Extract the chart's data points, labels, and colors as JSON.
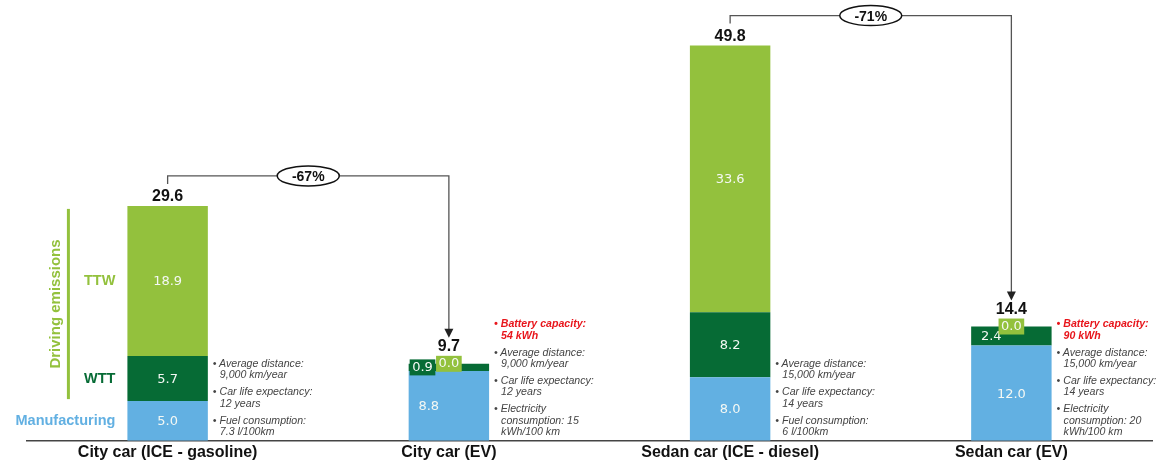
{
  "chart_data": {
    "type": "bar",
    "stacked": true,
    "categories": [
      "City car (ICE - gasoline)",
      "City car (EV)",
      "Sedan car (ICE - diesel)",
      "Sedan car (EV)"
    ],
    "series": [
      {
        "name": "Manufacturing",
        "color": "#62b0e2",
        "values": [
          5.0,
          8.8,
          8.0,
          12.0
        ],
        "value_labels": [
          "5.0",
          "8.8",
          "8.0",
          "12.0"
        ]
      },
      {
        "name": "WTT",
        "color": "#066b35",
        "values": [
          5.7,
          0.9,
          8.2,
          2.4
        ],
        "value_labels": [
          "5.7",
          "0.9",
          "8.2",
          "2.4"
        ]
      },
      {
        "name": "TTW",
        "color": "#93c13d",
        "values": [
          18.9,
          0.0,
          33.6,
          0.0
        ],
        "value_labels": [
          "18.9",
          "0.0",
          "33.6",
          "0.0"
        ]
      }
    ],
    "totals": [
      "29.6",
      "9.7",
      "49.8",
      "14.4"
    ],
    "annotations": [
      "Driving emissions",
      "-67%",
      "-71%",
      "• Average distance:\n9,000 km/year",
      "• Car life expectancy:\n12 years",
      "• Fuel consumption:\n7.3 l/100km",
      "• Battery capacity:\n54 kWh",
      "• Average distance:\n9,000 km/year",
      "• Car life expectancy:\n12 years",
      "• Electricity\nconsumption: 15\nkWh/100 km",
      "• Average distance:\n15,000 km/year",
      "• Car life expectancy:\n14 years",
      "• Fuel consumption:\n6 l/100km",
      "• Battery capacity:\n90 kWh",
      "• Average distance:\n15,000 km/year",
      "• Car life expectancy:\n14 years",
      "• Electricity\nconsumption: 20\nkWh/100 km"
    ]
  }
}
